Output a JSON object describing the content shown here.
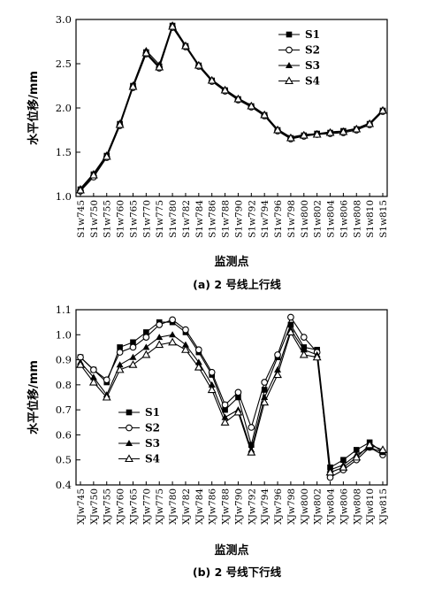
{
  "chart_data": [
    {
      "type": "line",
      "xlabel": "监测点",
      "ylabel": "水平位移/mm",
      "caption": "(a) 2 号线上行线",
      "ylim": [
        1.0,
        3.0
      ],
      "yticks": [
        "1.0",
        "1.5",
        "2.0",
        "2.5",
        "3.0"
      ],
      "legend_position": "top-right",
      "categories": [
        "S1w745",
        "S1w750",
        "S1w755",
        "S1w760",
        "S1w765",
        "S1w770",
        "S1w775",
        "S1w780",
        "S1w782",
        "S1w784",
        "S1w786",
        "S1w788",
        "S1w790",
        "S1w792",
        "S1w794",
        "S1w796",
        "S1w798",
        "S1w800",
        "S1w802",
        "S1w804",
        "S1w806",
        "S1w808",
        "S1w810",
        "S1w815"
      ],
      "series": [
        {
          "name": "S1",
          "marker": "filled-square",
          "values": [
            1.08,
            1.25,
            1.46,
            1.82,
            2.25,
            2.63,
            2.47,
            2.93,
            2.7,
            2.48,
            2.31,
            2.2,
            2.1,
            2.02,
            1.92,
            1.75,
            1.66,
            1.69,
            1.71,
            1.72,
            1.74,
            1.76,
            1.82,
            1.97
          ]
        },
        {
          "name": "S2",
          "marker": "open-circle",
          "values": [
            1.06,
            1.22,
            1.44,
            1.8,
            2.23,
            2.61,
            2.45,
            2.91,
            2.69,
            2.47,
            2.3,
            2.19,
            2.09,
            2.01,
            1.91,
            1.74,
            1.65,
            1.68,
            1.7,
            1.71,
            1.72,
            1.75,
            1.81,
            1.96
          ]
        },
        {
          "name": "S3",
          "marker": "filled-triangle",
          "values": [
            1.09,
            1.26,
            1.47,
            1.83,
            2.26,
            2.65,
            2.49,
            2.94,
            2.71,
            2.49,
            2.32,
            2.21,
            2.11,
            2.03,
            1.93,
            1.76,
            1.67,
            1.7,
            1.71,
            1.73,
            1.74,
            1.77,
            1.83,
            1.98
          ]
        },
        {
          "name": "S4",
          "marker": "open-triangle",
          "values": [
            1.07,
            1.24,
            1.45,
            1.81,
            2.24,
            2.62,
            2.46,
            2.92,
            2.7,
            2.48,
            2.31,
            2.2,
            2.1,
            2.02,
            1.92,
            1.75,
            1.66,
            1.69,
            1.7,
            1.72,
            1.73,
            1.76,
            1.82,
            1.97
          ]
        }
      ]
    },
    {
      "type": "line",
      "xlabel": "监测点",
      "ylabel": "水平位移/mm",
      "caption": "(b) 2 号线下行线",
      "ylim": [
        0.4,
        1.1
      ],
      "yticks": [
        "0.4",
        "0.5",
        "0.6",
        "0.7",
        "0.8",
        "0.9",
        "1.0",
        "1.1"
      ],
      "legend_position": "bottom-left",
      "categories": [
        "XJw745",
        "XJw750",
        "XJw755",
        "XJw760",
        "XJw765",
        "XJw770",
        "XJw775",
        "XJw780",
        "XJw782",
        "XJw784",
        "XJw786",
        "XJw788",
        "XJw790",
        "XJw792",
        "XJw794",
        "XJw796",
        "XJw798",
        "XJw800",
        "XJw802",
        "XJw804",
        "XJw806",
        "XJw808",
        "XJw810",
        "XJw815"
      ],
      "series": [
        {
          "name": "S1",
          "marker": "filled-square",
          "values": [
            0.91,
            0.86,
            0.81,
            0.95,
            0.97,
            1.01,
            1.05,
            1.05,
            1.01,
            0.93,
            0.84,
            0.7,
            0.75,
            0.56,
            0.78,
            0.91,
            1.04,
            0.95,
            0.94,
            0.47,
            0.5,
            0.54,
            0.57,
            0.53
          ]
        },
        {
          "name": "S2",
          "marker": "open-circle",
          "values": [
            0.91,
            0.86,
            0.82,
            0.93,
            0.95,
            0.99,
            1.04,
            1.06,
            1.02,
            0.94,
            0.85,
            0.72,
            0.77,
            0.63,
            0.81,
            0.92,
            1.07,
            0.99,
            0.93,
            0.43,
            0.46,
            0.5,
            0.55,
            0.52
          ]
        },
        {
          "name": "S3",
          "marker": "filled-triangle",
          "values": [
            0.89,
            0.83,
            0.76,
            0.88,
            0.91,
            0.95,
            0.99,
            1.0,
            0.96,
            0.89,
            0.8,
            0.67,
            0.7,
            0.54,
            0.75,
            0.86,
            1.02,
            0.94,
            0.92,
            0.46,
            0.48,
            0.52,
            0.55,
            0.53
          ]
        },
        {
          "name": "S4",
          "marker": "open-triangle",
          "values": [
            0.88,
            0.81,
            0.75,
            0.86,
            0.88,
            0.92,
            0.96,
            0.97,
            0.94,
            0.87,
            0.78,
            0.65,
            0.69,
            0.53,
            0.73,
            0.84,
            1.01,
            0.92,
            0.91,
            0.45,
            0.47,
            0.51,
            0.56,
            0.54
          ]
        }
      ]
    }
  ]
}
